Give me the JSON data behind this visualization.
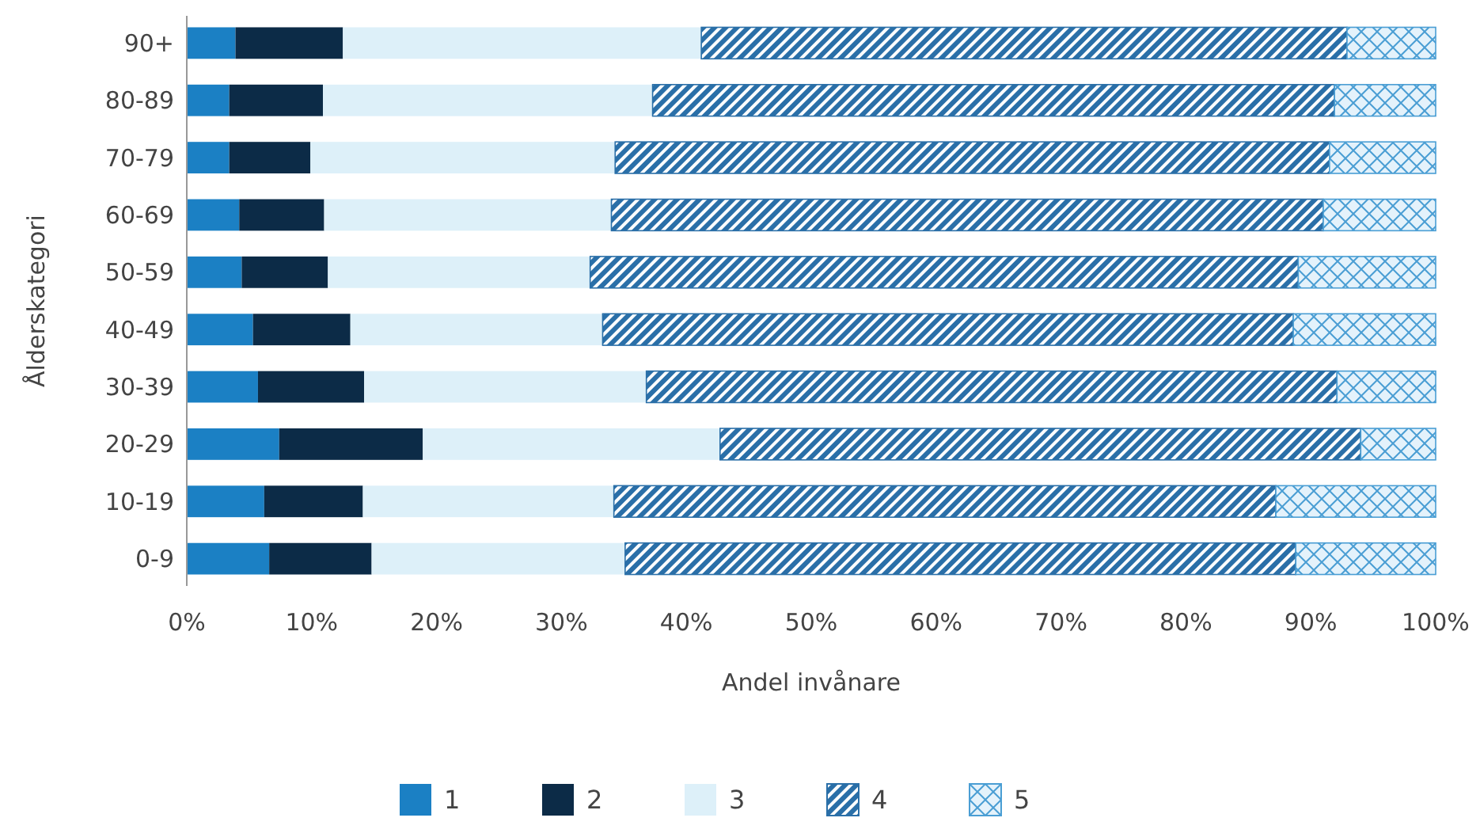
{
  "chart_data": {
    "type": "bar",
    "orientation": "horizontal",
    "stacked": true,
    "xlabel": "Andel invånare",
    "ylabel": "Ålderskategori",
    "categories": [
      "90+",
      "80-89",
      "70-79",
      "60-69",
      "50-59",
      "40-49",
      "30-39",
      "20-29",
      "10-19",
      "0-9"
    ],
    "xlim": [
      0,
      100
    ],
    "xticks": [
      {
        "value": 0,
        "label": "0%"
      },
      {
        "value": 10,
        "label": "10%"
      },
      {
        "value": 20,
        "label": "20%"
      },
      {
        "value": 30,
        "label": "30%"
      },
      {
        "value": 40,
        "label": "40%"
      },
      {
        "value": 50,
        "label": "50%"
      },
      {
        "value": 60,
        "label": "60%"
      },
      {
        "value": 70,
        "label": "70%"
      },
      {
        "value": 80,
        "label": "80%"
      },
      {
        "value": 90,
        "label": "90%"
      },
      {
        "value": 100,
        "label": "100%"
      }
    ],
    "legend": "bottom",
    "grid": false,
    "series": [
      {
        "name": "1",
        "color": "#1b80c4",
        "values": [
          3.9,
          3.4,
          3.4,
          4.2,
          4.4,
          5.3,
          5.7,
          7.4,
          6.2,
          6.6
        ]
      },
      {
        "name": "2",
        "color": "#0c2b47",
        "values": [
          8.6,
          7.5,
          6.5,
          6.8,
          6.9,
          7.8,
          8.5,
          11.5,
          7.9,
          8.2
        ]
      },
      {
        "name": "3",
        "color": "#ddf0f9",
        "values": [
          28.7,
          26.4,
          24.4,
          23.0,
          21.0,
          20.2,
          22.6,
          23.8,
          20.1,
          20.3
        ]
      },
      {
        "name": "4",
        "color": "#2a6fa8",
        "values": [
          51.7,
          54.6,
          57.2,
          57.0,
          56.7,
          55.3,
          55.3,
          51.3,
          53.0,
          53.7
        ]
      },
      {
        "name": "5",
        "color": "#4a9ed4",
        "values": [
          7.1,
          8.1,
          8.5,
          9.0,
          11.0,
          11.4,
          7.9,
          6.0,
          12.8,
          11.2
        ]
      }
    ]
  }
}
